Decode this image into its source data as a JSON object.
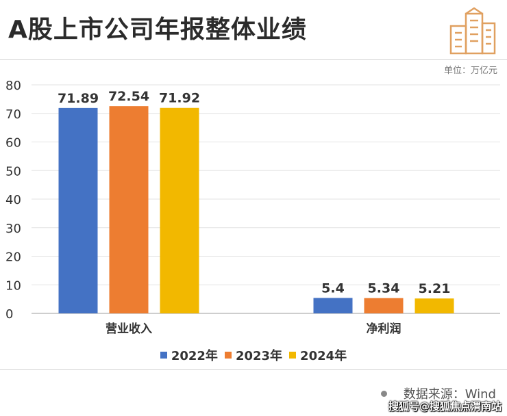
{
  "title": "A股上市公司年报整体业绩",
  "unit_label": "单位：万亿元",
  "source": {
    "label": "数据来源：Wind",
    "watermark": "搜狐号@搜狐焦点渭南站"
  },
  "colors": {
    "2022": "#4472c4",
    "2023": "#ed7d31",
    "2024": "#f2b800",
    "grid": "#e3e3e3",
    "logo": "#e0a060"
  },
  "chart_data": {
    "type": "bar",
    "categories": [
      "营业收入",
      "净利润"
    ],
    "series": [
      {
        "name": "2022年",
        "values": [
          71.89,
          5.4
        ]
      },
      {
        "name": "2023年",
        "values": [
          72.54,
          5.34
        ]
      },
      {
        "name": "2024年",
        "values": [
          71.92,
          5.21
        ]
      }
    ],
    "value_labels": [
      [
        "71.89",
        "5.4"
      ],
      [
        "72.54",
        "5.34"
      ],
      [
        "71.92",
        "5.21"
      ]
    ],
    "yticks": [
      "0",
      "10",
      "20",
      "30",
      "40",
      "50",
      "60",
      "70",
      "80"
    ],
    "ylim": [
      0,
      80
    ],
    "grid": true,
    "legend_position": "bottom"
  }
}
